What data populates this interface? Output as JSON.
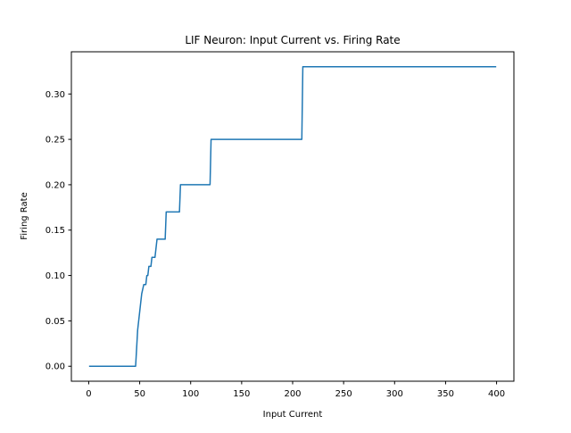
{
  "chart_data": {
    "type": "line",
    "title": "LIF Neuron: Input Current vs. Firing Rate",
    "xlabel": "Input Current",
    "ylabel": "Firing Rate",
    "xlim": [
      -17,
      417
    ],
    "ylim": [
      -0.0165,
      0.3465
    ],
    "xticks": [
      0,
      50,
      100,
      150,
      200,
      250,
      300,
      350,
      400
    ],
    "yticks": [
      0.0,
      0.05,
      0.1,
      0.15,
      0.2,
      0.25,
      0.3
    ],
    "ytick_labels": [
      "0.00",
      "0.05",
      "0.10",
      "0.15",
      "0.20",
      "0.25",
      "0.30"
    ],
    "grid": false,
    "series": [
      {
        "color": "#1f77b4",
        "x": [
          1,
          46,
          47,
          48,
          49,
          50,
          51,
          52,
          54,
          55,
          56,
          57,
          58,
          59,
          60,
          61,
          62,
          63,
          64,
          65,
          67,
          68,
          75,
          76,
          89,
          90,
          119,
          120,
          209,
          210,
          399
        ],
        "y": [
          0.0,
          0.0,
          0.02,
          0.04,
          0.05,
          0.06,
          0.07,
          0.08,
          0.09,
          0.09,
          0.09,
          0.1,
          0.1,
          0.11,
          0.11,
          0.11,
          0.12,
          0.12,
          0.12,
          0.12,
          0.14,
          0.14,
          0.14,
          0.17,
          0.17,
          0.2,
          0.2,
          0.25,
          0.25,
          0.33,
          0.33
        ]
      }
    ]
  }
}
